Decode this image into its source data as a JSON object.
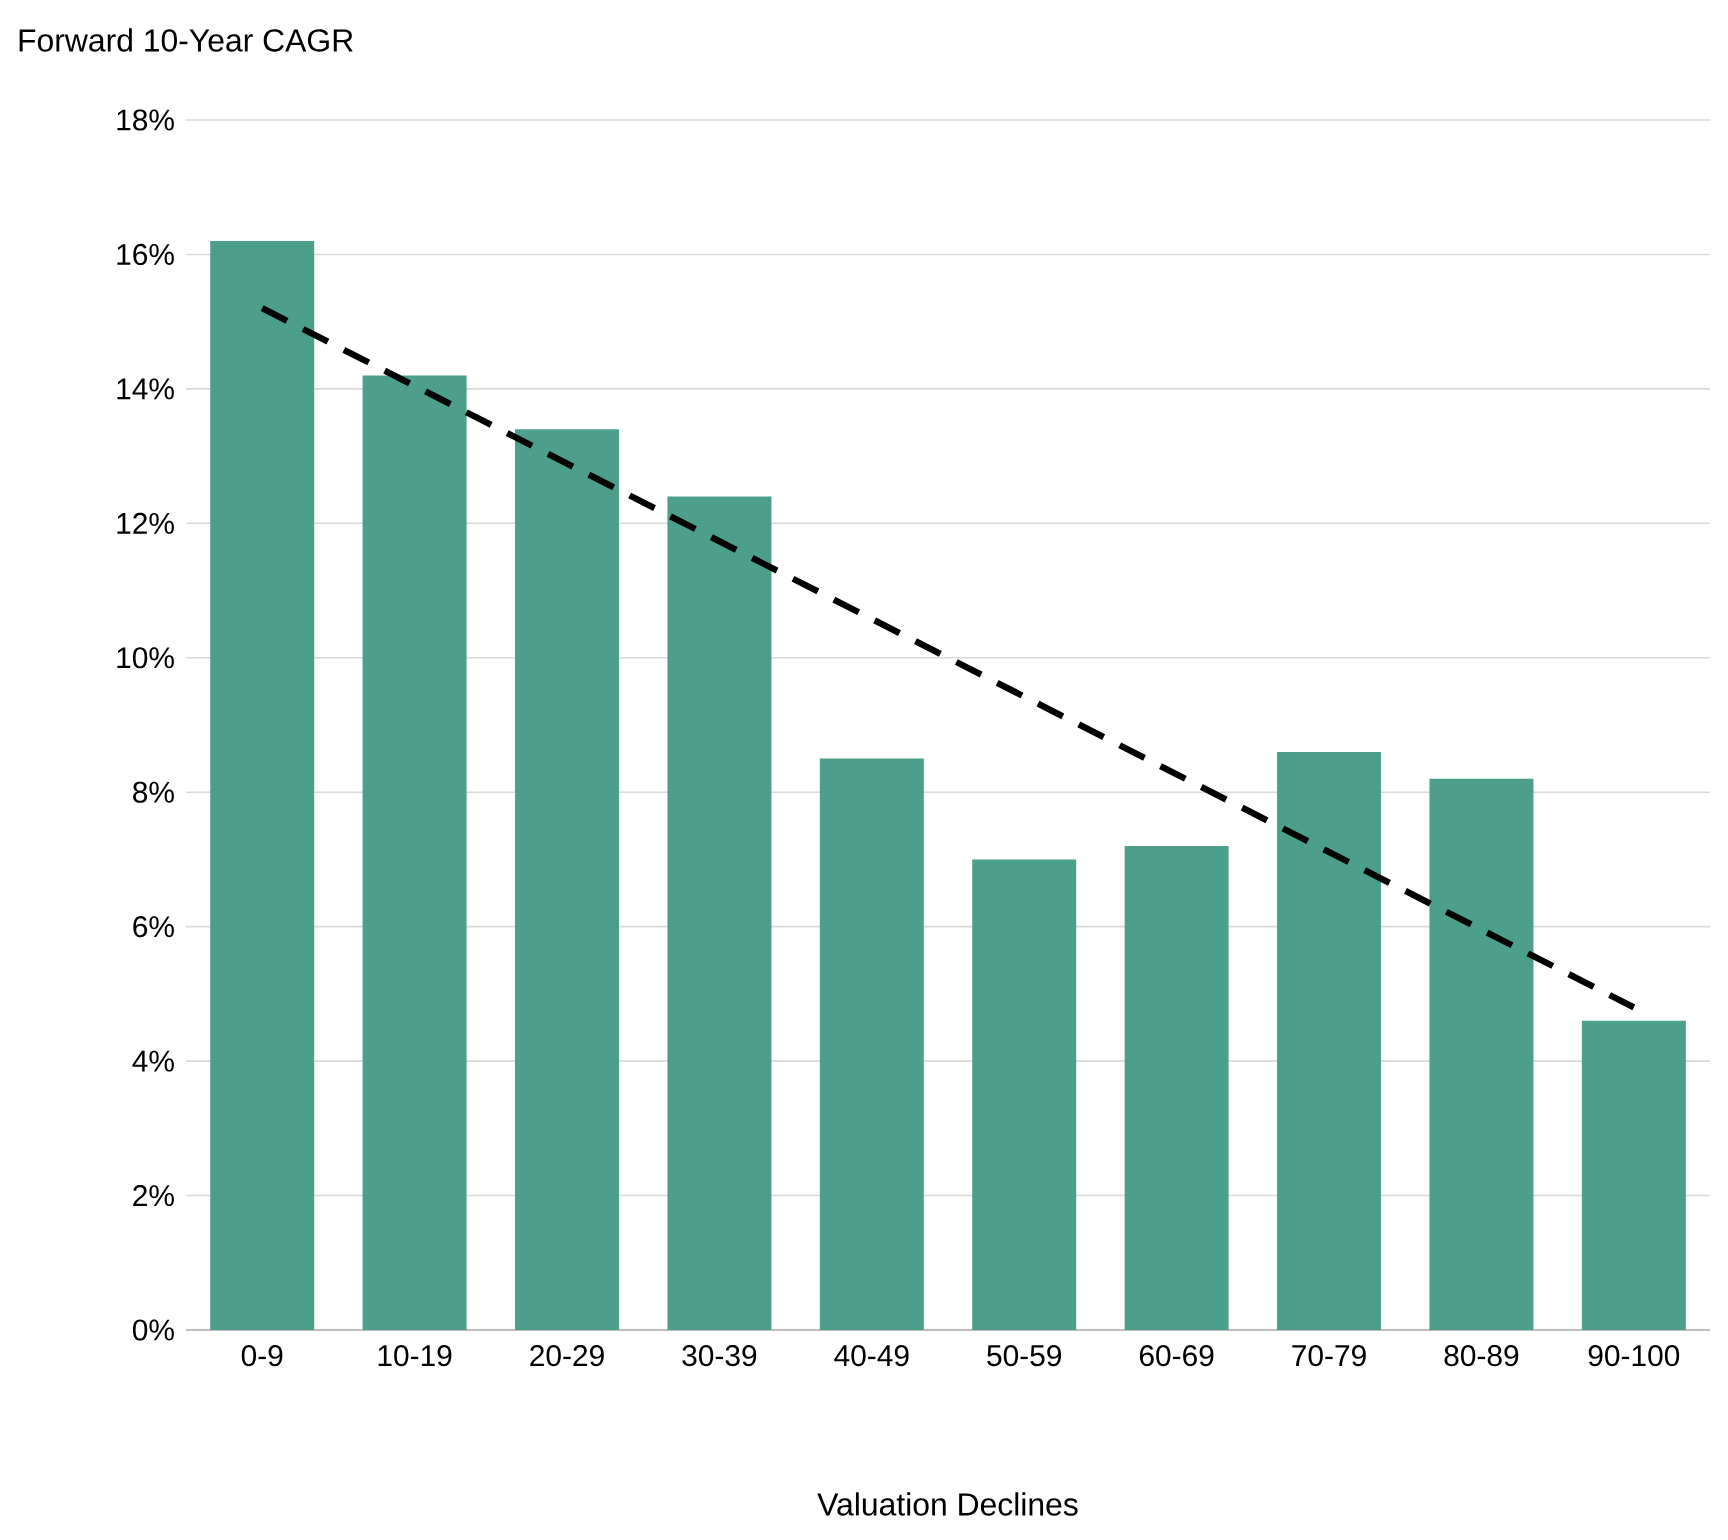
{
  "chart_data": {
    "type": "bar",
    "ylabel": "Forward 10-Year CAGR",
    "xlabel": "Valuation Declines",
    "categories": [
      "0-9",
      "10-19",
      "20-29",
      "30-39",
      "40-49",
      "50-59",
      "60-69",
      "70-79",
      "80-89",
      "90-100"
    ],
    "series": [
      {
        "color": "#4c9f8a",
        "values": [
          16.2,
          14.2,
          13.4,
          12.4,
          8.5,
          7.0,
          7.2,
          8.6,
          8.2,
          4.6
        ]
      },
      {
        "type": "line",
        "color": "#000000",
        "line_style": "dashed",
        "values": [
          15.2,
          null,
          null,
          null,
          null,
          null,
          null,
          null,
          null,
          4.8
        ]
      }
    ],
    "ylim": [
      0,
      18
    ],
    "yticks": [
      {
        "value": 0,
        "label": "0%"
      },
      {
        "value": 2,
        "label": "2%"
      },
      {
        "value": 4,
        "label": "4%"
      },
      {
        "value": 6,
        "label": "6%"
      },
      {
        "value": 8,
        "label": "8%"
      },
      {
        "value": 10,
        "label": "10%"
      },
      {
        "value": 12,
        "label": "12%"
      },
      {
        "value": 14,
        "label": "14%"
      },
      {
        "value": 16,
        "label": "16%"
      },
      {
        "value": 18,
        "label": "18%"
      }
    ],
    "grid": "y"
  }
}
